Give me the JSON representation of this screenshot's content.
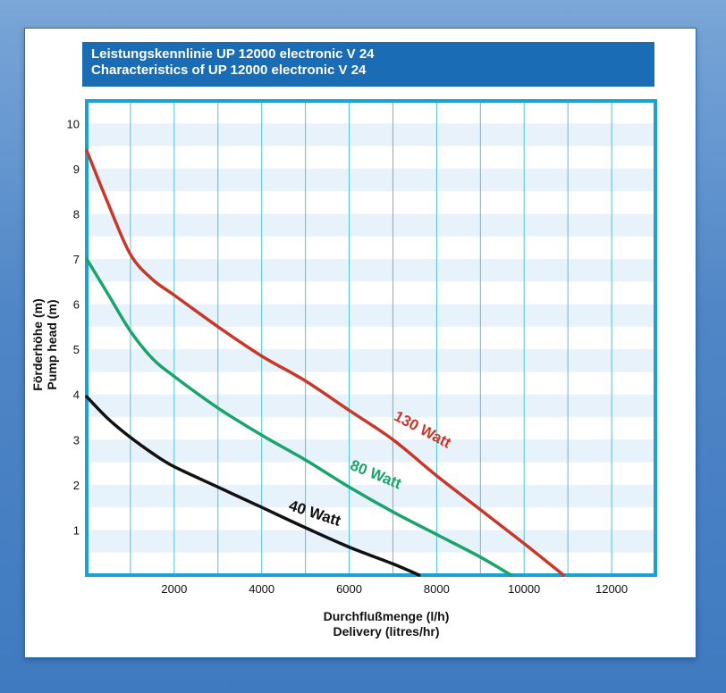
{
  "title_lines": [
    "Leistungskennlinie UP 12000 electronic V 24",
    "Characteristics of UP 12000 electronic V 24"
  ],
  "y_axis_label_lines": [
    "Förderhöhe (m)",
    "Pump head (m)"
  ],
  "x_axis_label_lines": [
    "Durchflußmenge (l/h)",
    "Delivery (litres/hr)"
  ],
  "chart_data": {
    "type": "line",
    "title": "Leistungskennlinie UP 12000 electronic V 24 / Characteristics of UP 12000 electronic V 24",
    "xlabel": "Durchflußmenge (l/h) / Delivery (litres/hr)",
    "ylabel": "Förderhöhe (m) / Pump head (m)",
    "xlim": [
      0,
      13000
    ],
    "ylim": [
      0,
      10.5
    ],
    "x_ticks": [
      2000,
      4000,
      6000,
      8000,
      10000,
      12000
    ],
    "y_ticks": [
      1,
      2,
      3,
      4,
      5,
      6,
      7,
      8,
      9,
      10
    ],
    "grid": true,
    "series": [
      {
        "name": "130 Watt",
        "color": "#c8382a",
        "x": [
          0,
          500,
          1000,
          1500,
          2000,
          3000,
          4000,
          5000,
          6000,
          7000,
          8000,
          9000,
          10000,
          10900
        ],
        "y": [
          9.4,
          8.2,
          7.1,
          6.55,
          6.2,
          5.5,
          4.85,
          4.3,
          3.65,
          3.0,
          2.2,
          1.45,
          0.7,
          0.0
        ]
      },
      {
        "name": "80 Watt",
        "color": "#1aa36a",
        "x": [
          0,
          500,
          1000,
          1500,
          2000,
          3000,
          4000,
          5000,
          6000,
          7000,
          8000,
          9000,
          9700
        ],
        "y": [
          7.0,
          6.2,
          5.4,
          4.8,
          4.4,
          3.7,
          3.1,
          2.55,
          1.95,
          1.4,
          0.9,
          0.4,
          0.0
        ]
      },
      {
        "name": "40 Watt",
        "color": "#111111",
        "x": [
          0,
          500,
          1000,
          1500,
          2000,
          3000,
          4000,
          5000,
          6000,
          7000,
          7600
        ],
        "y": [
          3.95,
          3.45,
          3.05,
          2.7,
          2.4,
          1.95,
          1.5,
          1.05,
          0.62,
          0.25,
          0.0
        ]
      }
    ]
  }
}
